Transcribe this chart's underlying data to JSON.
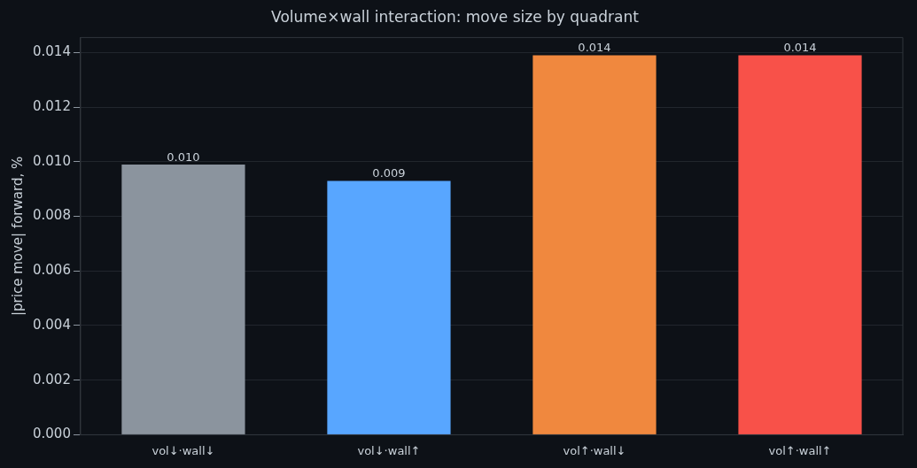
{
  "chart_data": {
    "type": "bar",
    "title": "Volume×wall interaction: move size by quadrant",
    "ylabel": "|price move| forward, %",
    "categories": [
      "vol↓·wall↓",
      "vol↓·wall↑",
      "vol↑·wall↓",
      "vol↑·wall↑"
    ],
    "values": [
      0.0099,
      0.0093,
      0.0139,
      0.0139
    ],
    "colors": [
      "#8b949e",
      "#58a6ff",
      "#f0883e",
      "#f85149"
    ],
    "value_labels": [
      "0.010",
      "0.009",
      "0.014",
      "0.014"
    ],
    "ylim": [
      0,
      0.01455
    ],
    "yticks": [
      {
        "value": 0,
        "label": "0.000"
      },
      {
        "value": 0.002,
        "label": "0.002"
      },
      {
        "value": 0.004,
        "label": "0.004"
      },
      {
        "value": 0.006,
        "label": "0.006"
      },
      {
        "value": 0.008,
        "label": "0.008"
      },
      {
        "value": 0.01,
        "label": "0.010"
      },
      {
        "value": 0.012,
        "label": "0.012"
      },
      {
        "value": 0.014,
        "label": "0.014"
      }
    ],
    "grid": "y",
    "legend": false
  }
}
